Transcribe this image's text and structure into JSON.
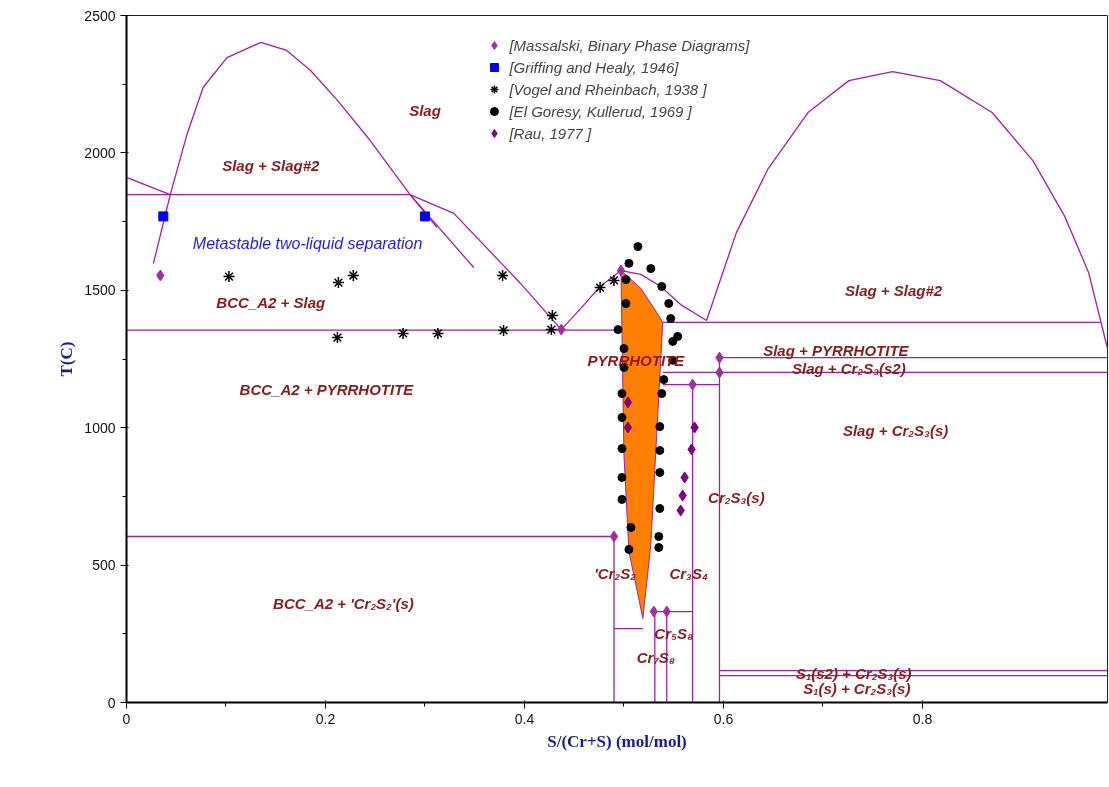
{
  "chart_data": {
    "type": "scatter",
    "xlabel": "S/(Cr+S) (mol/mol)",
    "ylabel": "T(C)",
    "xlim": [
      0,
      0.986
    ],
    "ylim": [
      0,
      2500
    ],
    "xticks": [
      0,
      0.2,
      0.4,
      0.6,
      0.8
    ],
    "yticks": [
      0,
      500,
      1000,
      1500,
      2000,
      2500
    ],
    "legend": "top",
    "series": [
      {
        "type": "area",
        "color": "#ff8000",
        "x": [
          0.497,
          0.517,
          0.533,
          0.539,
          0.533,
          0.527,
          0.519,
          0.505,
          0.5,
          0.497
        ],
        "values": [
          1572,
          1507,
          1419,
          1383,
          983,
          575,
          306,
          550,
          900,
          1572
        ]
      },
      {
        "type": "line",
        "color": "#a020a0",
        "x": [
          0,
          0.044
        ],
        "values": [
          1911,
          1848
        ]
      },
      {
        "type": "line",
        "color": "#a020a0",
        "x": [
          0.027,
          0.044,
          0.061,
          0.077,
          0.101,
          0.135,
          0.161,
          0.185,
          0.212,
          0.245,
          0.285,
          0.349
        ],
        "values": [
          1597,
          1848,
          2070,
          2238,
          2347,
          2402,
          2373,
          2300,
          2191,
          2045,
          1848,
          1583
        ]
      },
      {
        "type": "line",
        "color": "#a020a0",
        "x": [
          0.285,
          0.312
        ],
        "values": [
          1848,
          1729
        ]
      },
      {
        "type": "line",
        "color": "#a020a0",
        "x": [
          0,
          0.285,
          0.329,
          0.396,
          0.437,
          0.46,
          0.476,
          0.497,
          0.517,
          0.537,
          0.557,
          0.583
        ],
        "values": [
          1848,
          1848,
          1780,
          1525,
          1357,
          1448,
          1514,
          1572,
          1558,
          1514,
          1448,
          1390
        ]
      },
      {
        "type": "line",
        "color": "#a020a0",
        "x": [
          0.583,
          0.613,
          0.645,
          0.685,
          0.726,
          0.77,
          0.818,
          0.87,
          0.911,
          0.943,
          0.967,
          0.979,
          0.986
        ],
        "values": [
          1390,
          1710,
          1943,
          2147,
          2263,
          2296,
          2263,
          2147,
          1972,
          1769,
          1565,
          1390,
          1288
        ]
      },
      {
        "type": "line",
        "color": "#a020a0",
        "x": [
          0,
          0.497
        ],
        "values": [
          1355,
          1355
        ]
      },
      {
        "type": "line",
        "color": "#a020a0",
        "x": [
          0.539,
          0.979
        ],
        "values": [
          1383,
          1383
        ]
      },
      {
        "type": "line",
        "color": "#a020a0",
        "x": [
          0.986,
          0.596,
          0.596
        ],
        "values": [
          1255,
          1255,
          0
        ]
      },
      {
        "type": "line",
        "color": "#a020a0",
        "x": [
          0.539,
          0.986
        ],
        "values": [
          1201,
          1201
        ]
      },
      {
        "type": "line",
        "color": "#a020a0",
        "x": [
          0.539,
          0.596
        ],
        "values": [
          1157,
          1157
        ]
      },
      {
        "type": "line",
        "color": "#a020a0",
        "x": [
          0.569,
          0.569,
          0.543,
          0.543
        ],
        "values": [
          1157,
          331,
          331,
          0
        ]
      },
      {
        "type": "line",
        "color": "#a020a0",
        "x": [
          0.569,
          0.569
        ],
        "values": [
          331,
          0
        ]
      },
      {
        "type": "line",
        "color": "#a020a0",
        "x": [
          0,
          0.49,
          0.49
        ],
        "values": [
          604,
          604,
          0
        ]
      },
      {
        "type": "line",
        "color": "#a020a0",
        "x": [
          0.49,
          0.519
        ],
        "values": [
          269,
          269
        ]
      },
      {
        "type": "line",
        "color": "#a020a0",
        "x": [
          0.531,
          0.531,
          0.543
        ],
        "values": [
          0,
          331,
          331
        ]
      },
      {
        "type": "line",
        "color": "#a020a0",
        "x": [
          0.596,
          0.986
        ],
        "values": [
          116,
          116
        ]
      },
      {
        "type": "line",
        "color": "#a020a0",
        "x": [
          0.596,
          0.986
        ],
        "values": [
          98,
          98
        ]
      },
      {
        "name": "[Massalski, Binary Phase Diagrams]",
        "color": "#a030a0",
        "marker": "diamond",
        "x": [
          0.034,
          0.437,
          0.497,
          0.596,
          0.596,
          0.569,
          0.49,
          0.53,
          0.543
        ],
        "values": [
          1554,
          1357,
          1572,
          1255,
          1201,
          1157,
          604,
          331,
          331
        ]
      },
      {
        "name": "[Griffing and Healy, 1946]",
        "color": "#0000ff",
        "marker": "square",
        "x": [
          0.037,
          0.3
        ],
        "values": [
          1769,
          1769
        ]
      },
      {
        "name": "[Vogel and Rheinbach, 1938 ]",
        "color": "#000000",
        "marker": "cross",
        "x": [
          0.103,
          0.213,
          0.228,
          0.378,
          0.212,
          0.278,
          0.313,
          0.379,
          0.428,
          0.427,
          0.476,
          0.49
        ],
        "values": [
          1550,
          1528,
          1554,
          1554,
          1328,
          1343,
          1343,
          1354,
          1408,
          1357,
          1510,
          1536
        ]
      },
      {
        "name": "[El Goresy, Kullerud, 1969 ]",
        "color": "#000000",
        "marker": "circle",
        "x": [
          0.514,
          0.505,
          0.527,
          0.502,
          0.538,
          0.502,
          0.545,
          0.547,
          0.494,
          0.554,
          0.549,
          0.5,
          0.5,
          0.549,
          0.54,
          0.498,
          0.538,
          0.498,
          0.536,
          0.498,
          0.536,
          0.536,
          0.498,
          0.498,
          0.536,
          0.507,
          0.535,
          0.535,
          0.505
        ],
        "values": [
          1659,
          1598,
          1579,
          1539,
          1514,
          1452,
          1452,
          1397,
          1357,
          1332,
          1314,
          1288,
          1219,
          1245,
          1175,
          1124,
          1124,
          1037,
          1004,
          924,
          917,
          837,
          819,
          739,
          706,
          637,
          604,
          564,
          557
        ]
      },
      {
        "name": "[Rau, 1977 ]",
        "color": "#800080",
        "marker": "diamond",
        "x": [
          0.504,
          0.504,
          0.571,
          0.568,
          0.561,
          0.559,
          0.557
        ],
        "values": [
          1092,
          1001,
          1001,
          921,
          819,
          753,
          699
        ]
      }
    ],
    "annotations": [
      "Slag",
      "Slag + Slag#2",
      "Metastable two-liquid separation",
      "BCC_A2 + Slag",
      "BCC_A2 + PYRRHOTITE",
      "BCC_A2 + 'Cr₂S₂'(s)",
      "PYRRHOTITE",
      "Slag + Slag#2",
      "Slag + PYRRHOTITE",
      "Slag + Cr₂S₃(s2)",
      "Slag + Cr₂S₃(s)",
      "Cr₂S₃(s)",
      "'Cr₂S₂",
      "Cr₃S₄",
      "Cr₅S₈",
      "Cr₇S₈",
      "S₁(s2) + Cr₂S₃(s)",
      "S₁(s) + Cr₂S₃(s)"
    ]
  }
}
